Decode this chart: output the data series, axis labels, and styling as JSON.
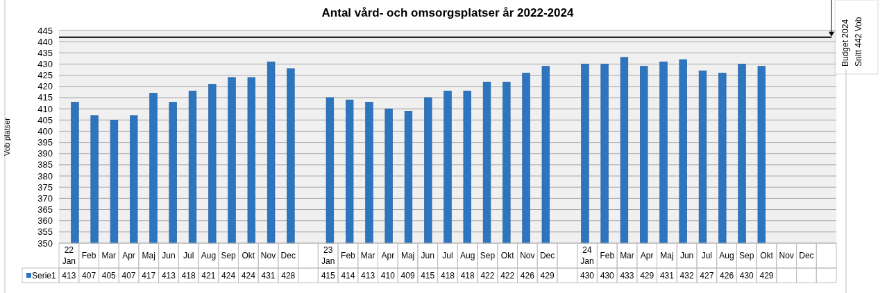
{
  "chart_data": {
    "type": "bar",
    "title": "Antal vård- och omsorgsplatser år 2022-2024",
    "ylabel": "Vob platser",
    "categories": [
      "22 Jan",
      "Feb",
      "Mar",
      "Apr",
      "Maj",
      "Jun",
      "Jul",
      "Aug",
      "Sep",
      "Okt",
      "Nov",
      "Dec",
      null,
      "23 Jan",
      "Feb",
      "Mar",
      "Apr",
      "Maj",
      "Jun",
      "Jul",
      "Aug",
      "Sep",
      "Okt",
      "Nov",
      "Dec",
      null,
      "24 Jan",
      "Feb",
      "Mar",
      "Apr",
      "Maj",
      "Jun",
      "Jul",
      "Aug",
      "Sep",
      "Okt",
      "Nov",
      "Dec",
      null
    ],
    "series": [
      {
        "name": "Serie1",
        "color": "#2e75c0",
        "values": [
          413,
          407,
          405,
          407,
          417,
          413,
          418,
          421,
          424,
          424,
          431,
          428,
          null,
          415,
          414,
          413,
          410,
          409,
          415,
          418,
          418,
          422,
          422,
          426,
          429,
          null,
          430,
          430,
          433,
          429,
          431,
          432,
          427,
          426,
          430,
          429,
          null,
          null,
          null
        ]
      }
    ],
    "ylim": [
      350,
      445
    ],
    "yticks": [
      350,
      355,
      360,
      365,
      370,
      375,
      380,
      385,
      390,
      395,
      400,
      405,
      410,
      415,
      420,
      425,
      430,
      435,
      440,
      445
    ],
    "grid": "y",
    "legend": "bottom",
    "data_labels": true,
    "ref_lines": [
      {
        "axis": "y",
        "value": 442,
        "label": "Budget 2024\nSnitt 442 Vob",
        "color": "#000000"
      }
    ]
  }
}
